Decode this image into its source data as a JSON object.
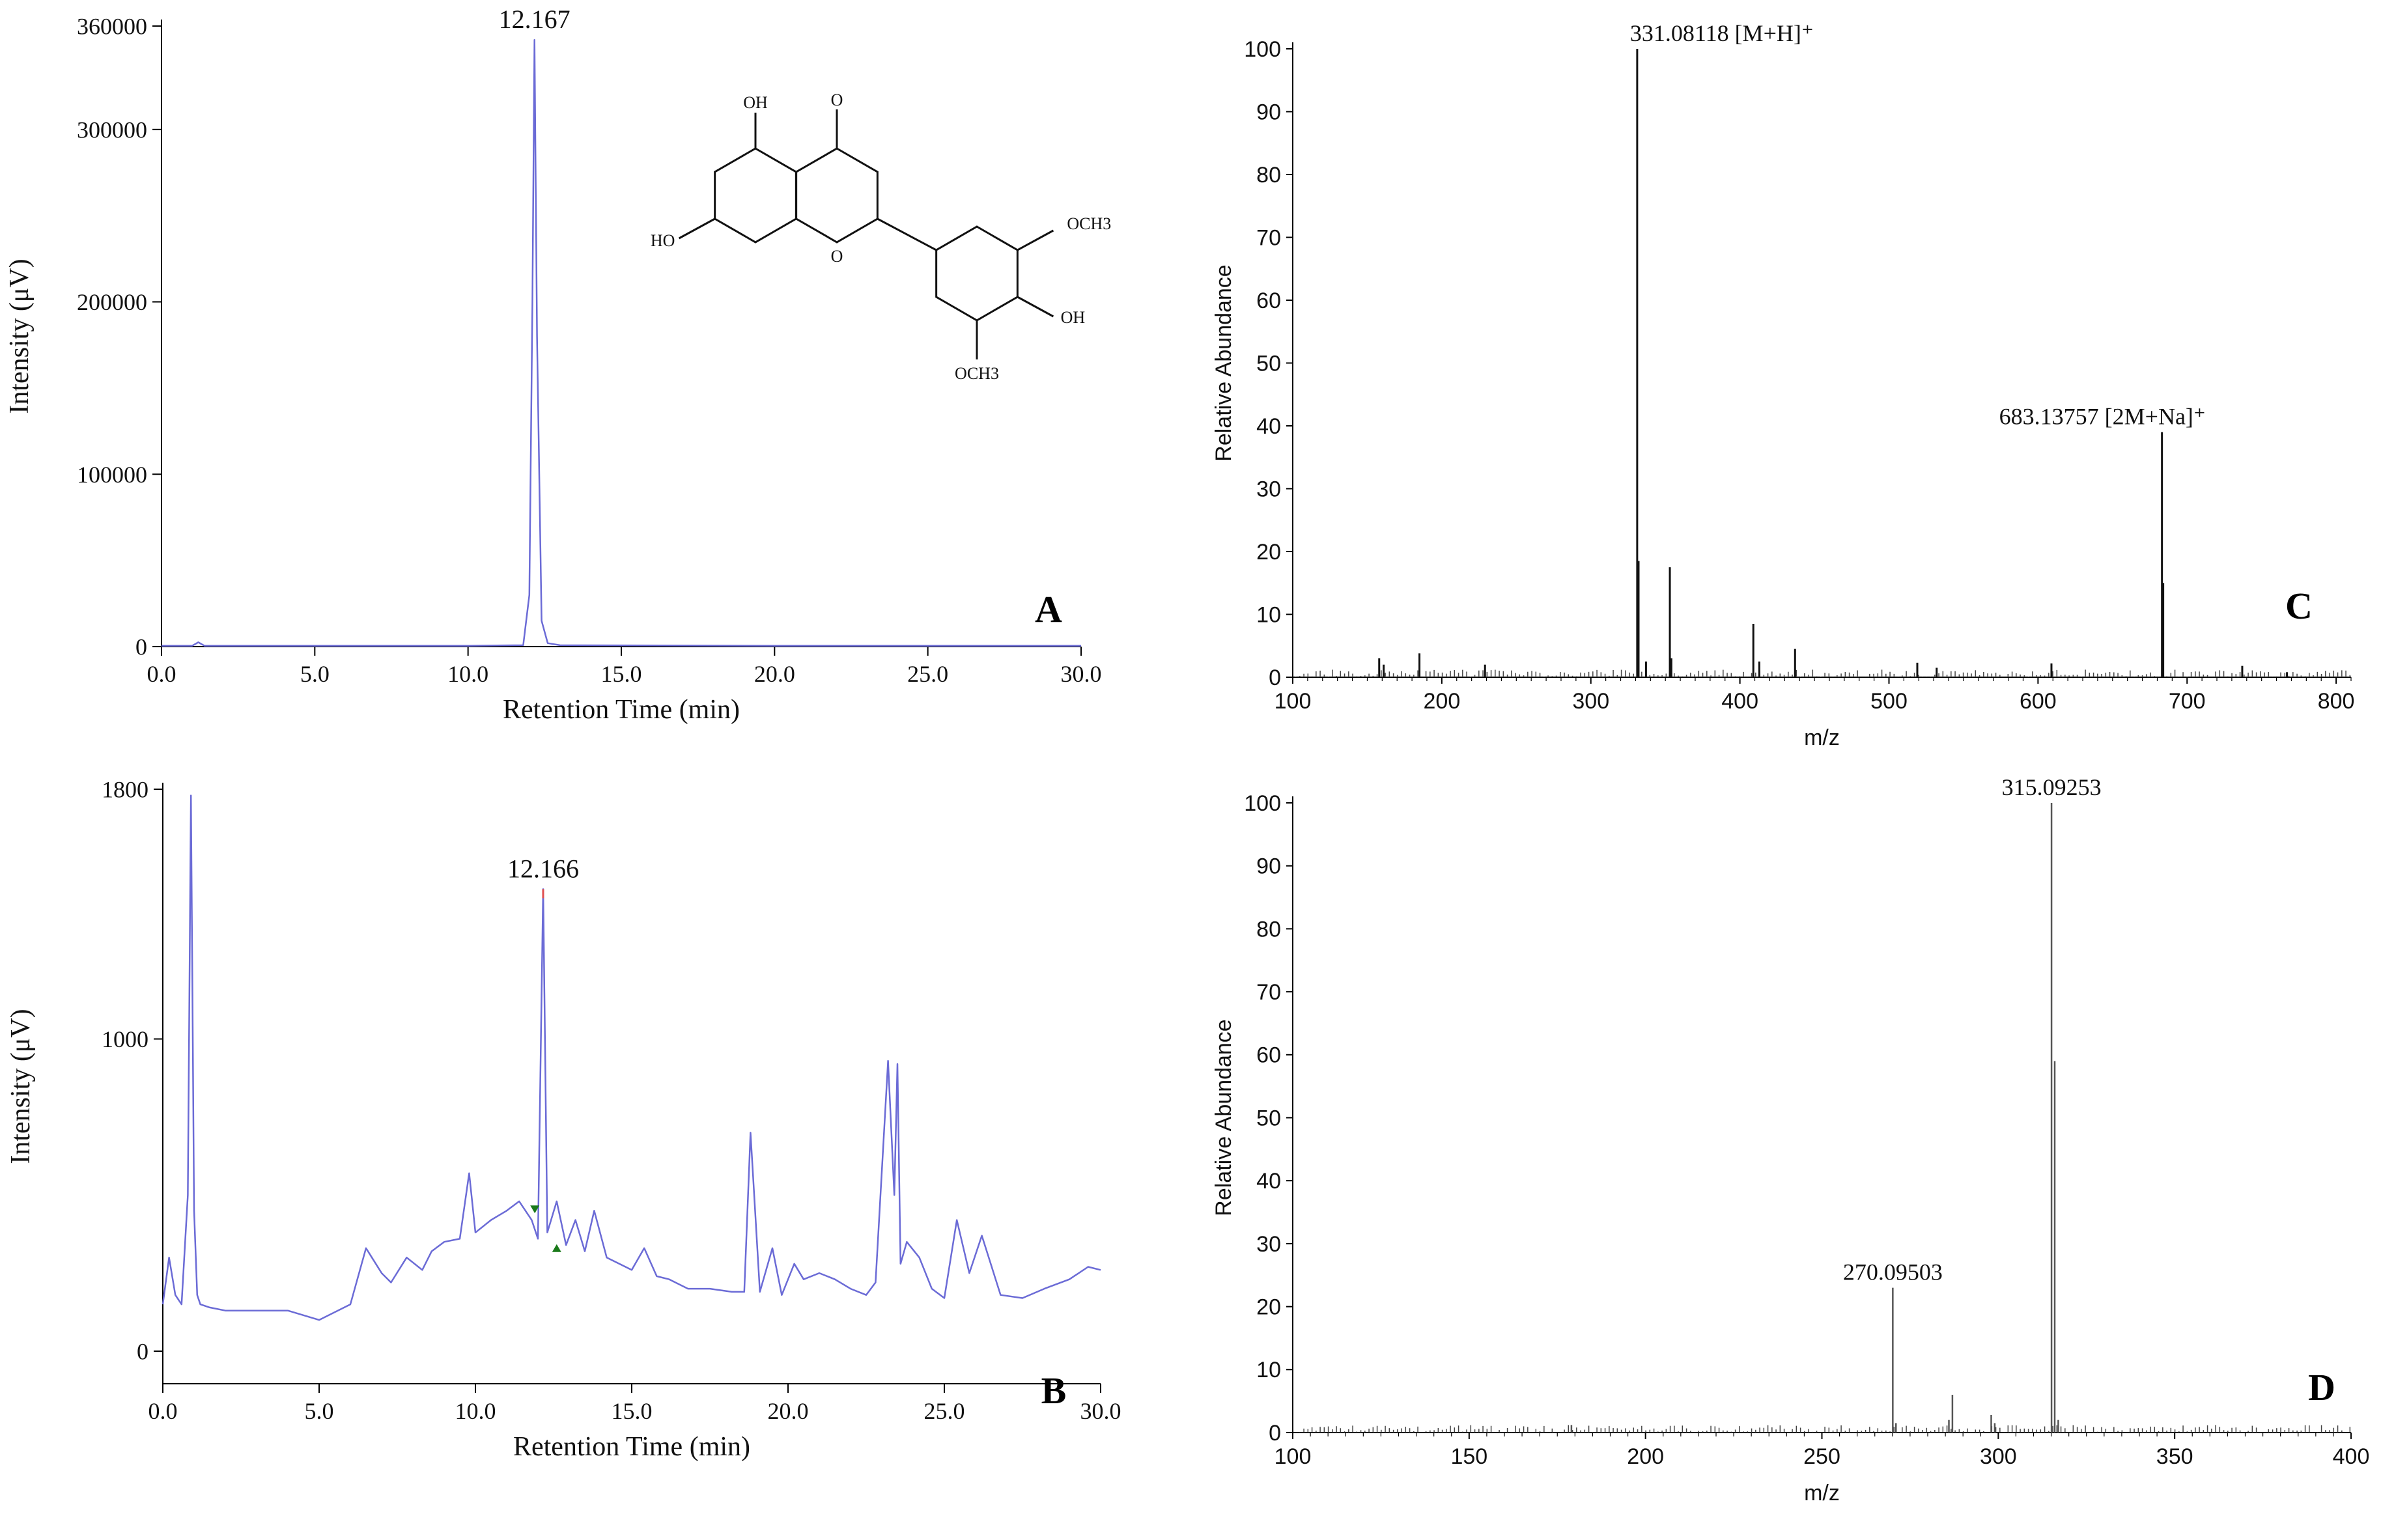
{
  "chart_data": [
    {
      "panel_label": "A",
      "type": "line",
      "xlabel": "Retention Time (min)",
      "ylabel": "Intensity (μV)",
      "xlim": [
        0,
        30
      ],
      "ylim": [
        0,
        360000
      ],
      "x_ticks": [
        "0.0",
        "5.0",
        "10.0",
        "15.0",
        "20.0",
        "25.0",
        "30.0"
      ],
      "y_ticks": [
        "0",
        "100000",
        "200000",
        "300000",
        "360000"
      ],
      "peak_label": "12.167",
      "line_color": "#6b6bd6",
      "x": [
        0.0,
        1.0,
        1.2,
        1.4,
        5.0,
        10.0,
        11.8,
        12.0,
        12.1,
        12.167,
        12.25,
        12.4,
        12.6,
        13.0,
        20.0,
        30.0
      ],
      "y": [
        500,
        500,
        2500,
        500,
        500,
        500,
        800,
        30000,
        200000,
        352000,
        180000,
        15000,
        2000,
        800,
        500,
        500
      ],
      "structure_labels": [
        "OH",
        "O",
        "HO",
        "O",
        "OCH3",
        "OH",
        "OCH3"
      ]
    },
    {
      "panel_label": "B",
      "type": "line",
      "xlabel": "Retention Time (min)",
      "ylabel": "Intensity (μV)",
      "xlim": [
        0,
        30
      ],
      "ylim": [
        0,
        1800
      ],
      "x_ticks": [
        "0.0",
        "5.0",
        "10.0",
        "15.0",
        "20.0",
        "25.0",
        "30.0"
      ],
      "y_ticks": [
        "0",
        "1000",
        "1800"
      ],
      "peak_label": "12.166",
      "line_color": "#6b6bd6",
      "x": [
        0.0,
        0.2,
        0.4,
        0.6,
        0.8,
        0.9,
        1.0,
        1.1,
        1.2,
        1.5,
        2.0,
        3.0,
        4.0,
        5.0,
        6.0,
        6.5,
        7.0,
        7.3,
        7.8,
        8.3,
        8.6,
        9.0,
        9.5,
        9.8,
        10.0,
        10.5,
        11.0,
        11.4,
        11.8,
        12.0,
        12.166,
        12.3,
        12.6,
        12.9,
        13.2,
        13.5,
        13.8,
        14.2,
        14.6,
        15.0,
        15.4,
        15.8,
        16.2,
        16.8,
        17.5,
        18.2,
        18.6,
        18.8,
        19.1,
        19.5,
        19.8,
        20.2,
        20.5,
        21.0,
        21.5,
        22.0,
        22.5,
        22.8,
        23.2,
        23.4,
        23.5,
        23.6,
        23.8,
        24.2,
        24.6,
        25.0,
        25.4,
        25.8,
        26.2,
        26.8,
        27.5,
        28.2,
        29.0,
        29.6,
        30.0
      ],
      "y": [
        150,
        300,
        180,
        150,
        500,
        1780,
        450,
        180,
        150,
        140,
        130,
        130,
        130,
        100,
        150,
        330,
        250,
        220,
        300,
        260,
        320,
        350,
        360,
        570,
        380,
        420,
        450,
        480,
        420,
        360,
        1480,
        380,
        480,
        340,
        420,
        320,
        450,
        300,
        280,
        260,
        330,
        240,
        230,
        200,
        200,
        190,
        190,
        700,
        190,
        330,
        180,
        280,
        230,
        250,
        230,
        200,
        180,
        220,
        930,
        500,
        920,
        280,
        350,
        300,
        200,
        170,
        420,
        250,
        370,
        180,
        170,
        200,
        230,
        270,
        260
      ]
    },
    {
      "panel_label": "C",
      "type": "bar",
      "xlabel": "m/z",
      "ylabel": "Relative Abundance",
      "xlim": [
        100,
        810
      ],
      "ylim": [
        0,
        100
      ],
      "x_ticks": [
        "100",
        "200",
        "300",
        "400",
        "500",
        "600",
        "700",
        "800"
      ],
      "y_ticks": [
        "0",
        "10",
        "20",
        "30",
        "40",
        "50",
        "60",
        "70",
        "80",
        "90",
        "100"
      ],
      "annotations": [
        {
          "mz": 331.08118,
          "text": "331.08118 [M+H]⁺"
        },
        {
          "mz": 683.13757,
          "text": "683.13757 [2M+Na]⁺"
        }
      ],
      "peaks_mz": [
        158,
        161,
        185,
        229,
        331.08118,
        332,
        337,
        353,
        354,
        409,
        413,
        437,
        519,
        532,
        609,
        683.13757,
        684,
        737,
        767
      ],
      "peaks_abundance": [
        3,
        2,
        3.8,
        2,
        100,
        18.5,
        2.5,
        17.5,
        3,
        8.5,
        2.5,
        4.5,
        2.3,
        1.5,
        2.2,
        39,
        15,
        1.8,
        0.8
      ]
    },
    {
      "panel_label": "D",
      "type": "bar",
      "xlabel": "m/z",
      "ylabel": "Relative Abundance",
      "xlim": [
        100,
        400
      ],
      "ylim": [
        0,
        100
      ],
      "x_ticks": [
        "100",
        "150",
        "200",
        "250",
        "300",
        "350",
        "400"
      ],
      "y_ticks": [
        "0",
        "10",
        "20",
        "30",
        "40",
        "50",
        "60",
        "70",
        "80",
        "90",
        "100"
      ],
      "annotations": [
        {
          "mz": 270.09503,
          "text": "270.09503"
        },
        {
          "mz": 315.09253,
          "text": "315.09253"
        }
      ],
      "peaks_mz": [
        179,
        270.09503,
        271,
        286,
        287,
        298,
        299,
        315.09253,
        316,
        317
      ],
      "peaks_abundance": [
        1.2,
        23,
        1.5,
        2,
        6,
        2.8,
        1.5,
        100,
        59,
        2
      ]
    }
  ]
}
